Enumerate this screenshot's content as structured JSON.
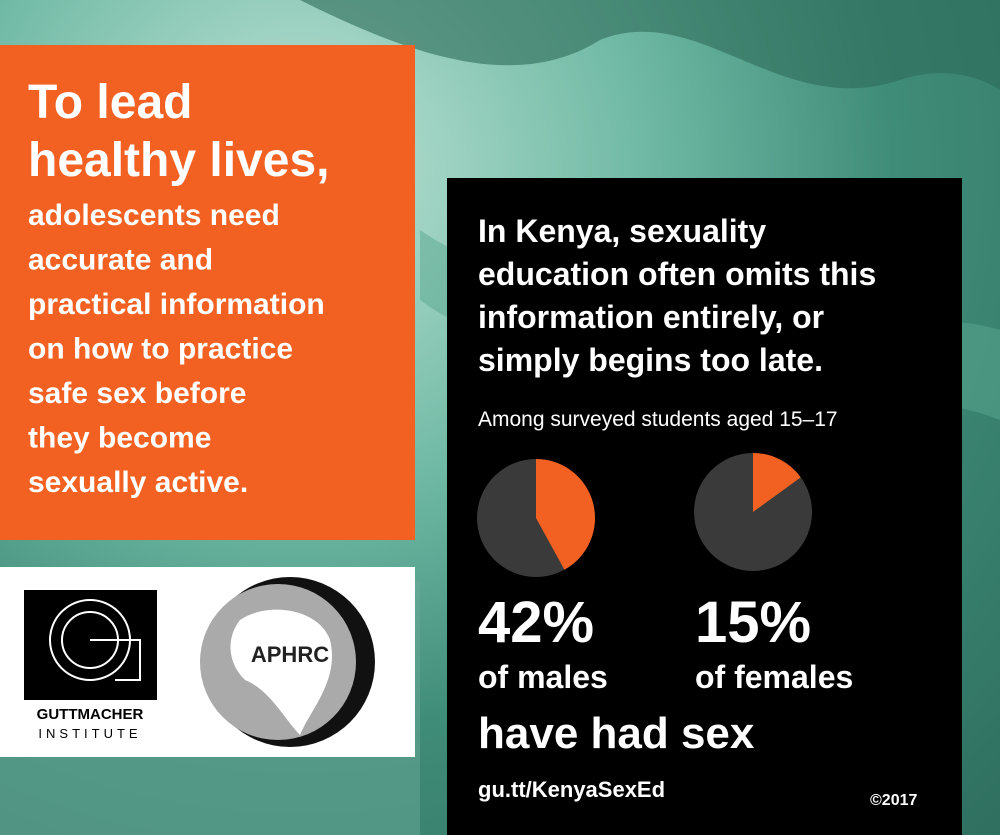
{
  "headline": {
    "lead": [
      "To lead",
      "healthy lives,"
    ],
    "body": [
      "adolescents need",
      "accurate and",
      "practical information",
      "on how to practice",
      "safe sex before",
      "they become",
      "sexually active."
    ]
  },
  "logos": {
    "guttmacher": [
      "GUTTMACHER",
      "INSTITUTE"
    ],
    "aphrc": "APHRC"
  },
  "panel": {
    "heading": [
      "In Kenya, sexuality",
      "education often omits this",
      "information entirely, or",
      "simply begins too late."
    ],
    "subtitle": "Among surveyed students aged 15–17",
    "stats": [
      {
        "value": 42,
        "value_label": "42%",
        "label": "of males"
      },
      {
        "value": 15,
        "value_label": "15%",
        "label": "of females"
      }
    ],
    "conclusion": "have had sex",
    "url": "gu.tt/KenyaSexEd",
    "copyright": "©2017"
  }
}
